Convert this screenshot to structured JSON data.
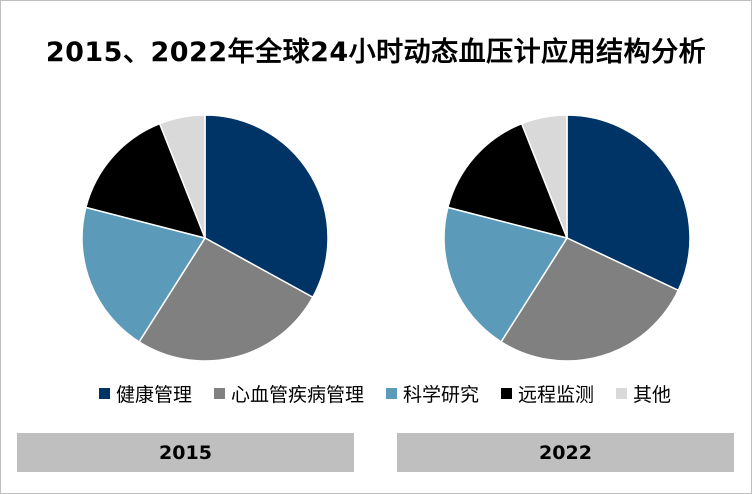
{
  "title": "2015、2022年全球24小时动态血压计应用结构分析",
  "colors": {
    "健康管理": "#003366",
    "心血管疾病管理": "#808080",
    "科学研究": "#5b9ab8",
    "远程监测": "#000000",
    "其他": "#d9d9d9"
  },
  "chart_data": [
    {
      "type": "pie",
      "label": "2015",
      "categories": [
        "健康管理",
        "心血管疾病管理",
        "科学研究",
        "远程监测",
        "其他"
      ],
      "values": [
        33,
        26,
        20,
        15,
        6
      ]
    },
    {
      "type": "pie",
      "label": "2022",
      "categories": [
        "健康管理",
        "心血管疾病管理",
        "科学研究",
        "远程监测",
        "其他"
      ],
      "values": [
        32,
        27,
        20,
        15,
        6
      ]
    }
  ],
  "legend": [
    "健康管理",
    "心血管疾病管理",
    "科学研究",
    "远程监测",
    "其他"
  ]
}
